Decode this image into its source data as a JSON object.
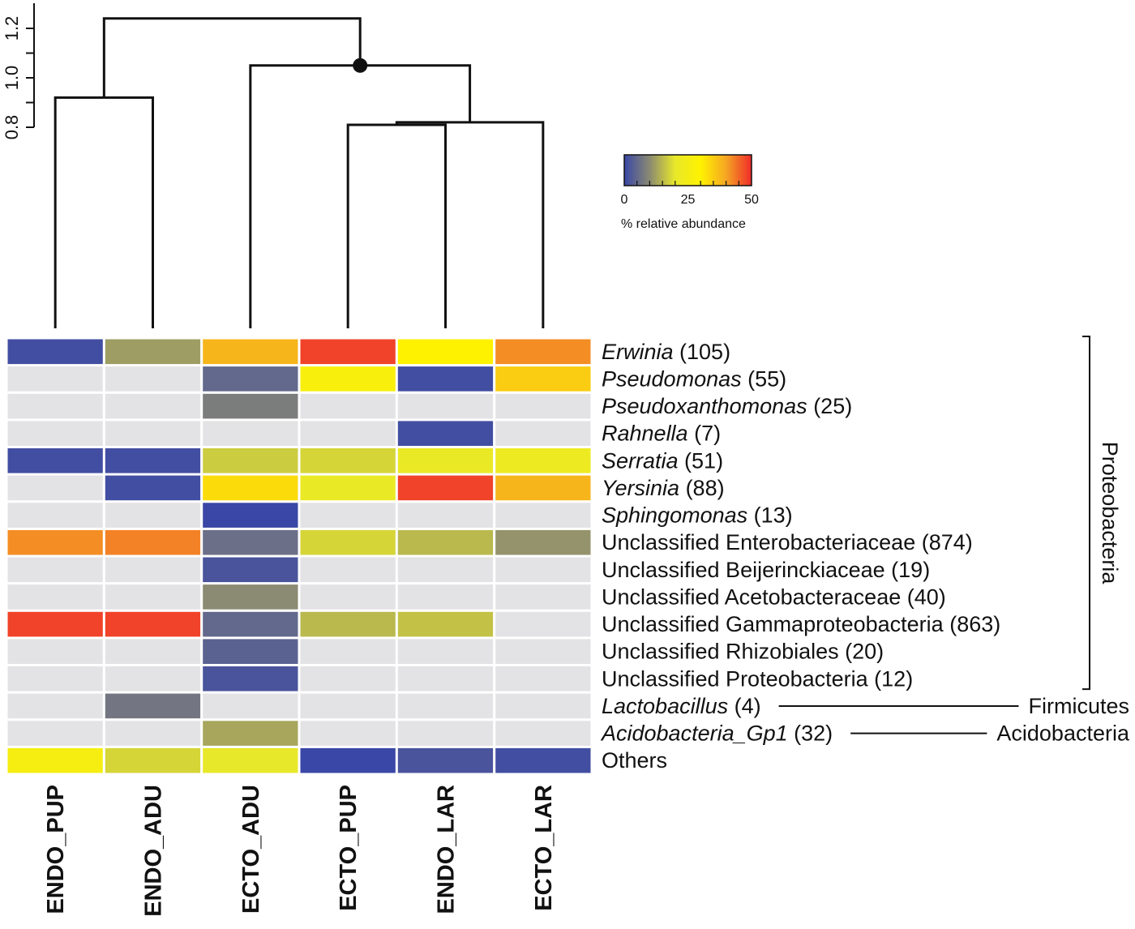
{
  "chart_data": {
    "type": "heatmap",
    "title": "",
    "columns": [
      "ENDO_PUP",
      "ENDO_ADU",
      "ECTO_ADU",
      "ECTO_PUP",
      "ENDO_LAR",
      "ECTO_LAR"
    ],
    "rows": [
      {
        "name": "Erwinia",
        "count": "(105)",
        "italic": true
      },
      {
        "name": "Pseudomonas",
        "count": "(55)",
        "italic": true
      },
      {
        "name": "Pseudoxanthomonas",
        "count": "(25)",
        "italic": true
      },
      {
        "name": "Rahnella",
        "count": "(7)",
        "italic": true
      },
      {
        "name": "Serratia",
        "count": "(51)",
        "italic": true
      },
      {
        "name": "Yersinia",
        "count": "(88)",
        "italic": true
      },
      {
        "name": "Sphingomonas",
        "count": "(13)",
        "italic": true
      },
      {
        "name": "Unclassified Enterobacteriaceae",
        "count": "(874)",
        "italic": false
      },
      {
        "name": "Unclassified Beijerinckiaceae",
        "count": "(19)",
        "italic": false
      },
      {
        "name": "Unclassified Acetobacteraceae",
        "count": "(40)",
        "italic": false
      },
      {
        "name": "Unclassified Gammaproteobacteria",
        "count": "(863)",
        "italic": false
      },
      {
        "name": "Unclassified Rhizobiales",
        "count": "(20)",
        "italic": false
      },
      {
        "name": "Unclassified Proteobacteria",
        "count": "(12)",
        "italic": false
      },
      {
        "name": "Lactobacillus",
        "count": "(4)",
        "italic": true
      },
      {
        "name": "Acidobacteria_Gp1",
        "count": "(32)",
        "italic": true
      },
      {
        "name": "Others",
        "count": "",
        "italic": false
      }
    ],
    "values": [
      [
        1,
        12,
        38,
        48,
        30,
        42
      ],
      [
        null,
        null,
        5,
        27,
        1,
        35
      ],
      [
        null,
        null,
        8,
        null,
        null,
        null
      ],
      [
        null,
        null,
        null,
        null,
        1,
        null
      ],
      [
        1,
        1,
        17,
        18,
        21,
        22
      ],
      [
        null,
        1,
        33,
        21,
        48,
        38
      ],
      [
        null,
        null,
        0,
        null,
        null,
        null
      ],
      [
        42,
        43,
        6,
        18,
        15,
        11
      ],
      [
        null,
        null,
        2,
        null,
        null,
        null
      ],
      [
        null,
        null,
        10,
        null,
        null,
        null
      ],
      [
        48,
        48,
        5,
        15,
        16,
        null
      ],
      [
        null,
        null,
        4,
        null,
        null,
        null
      ],
      [
        null,
        null,
        2,
        null,
        null,
        null
      ],
      [
        null,
        7,
        null,
        null,
        null,
        null
      ],
      [
        null,
        null,
        13,
        null,
        null,
        null
      ],
      [
        26,
        18,
        20,
        0,
        2,
        1
      ]
    ],
    "color_scale": {
      "min": 0,
      "max": 50,
      "ticks": [
        "0",
        "25",
        "50"
      ],
      "label": "% relative abundance",
      "stops": [
        "#3a47a6",
        "#8b8a72",
        "#e8e82a",
        "#fff200",
        "#f5a623",
        "#ef2a2a"
      ],
      "absent_color": "#e3e2e4"
    },
    "phyla": [
      {
        "name": "Proteobacteria",
        "rows_from": 0,
        "rows_to": 12,
        "style": "bracket"
      },
      {
        "name": "Firmicutes",
        "rows_from": 13,
        "rows_to": 13,
        "style": "line"
      },
      {
        "name": "Acidobacteria",
        "rows_from": 14,
        "rows_to": 14,
        "style": "line"
      }
    ],
    "dendrogram": {
      "y_ticks": [
        "0.8",
        "1.0",
        "1.2"
      ],
      "ylim": [
        0.8,
        1.2
      ],
      "merges": [
        {
          "a": "ECTO_PUP",
          "b": "ENDO_LAR",
          "height": 0.81
        },
        {
          "a": "ECTO_PUP+ENDO_LAR",
          "b": "ECTO_LAR",
          "height": 0.82
        },
        {
          "a": "ENDO_PUP",
          "b": "ENDO_ADU",
          "height": 0.92
        },
        {
          "a": "ECTO_ADU",
          "b": "ECTO_PUP+ENDO_LAR+ECTO_LAR",
          "height": 1.05,
          "marked": true
        },
        {
          "a": "ENDO_PUP+ENDO_ADU",
          "b": "ECTO_ADU+ECTO_PUP+ENDO_LAR+ECTO_LAR",
          "height": 1.24
        }
      ]
    }
  }
}
